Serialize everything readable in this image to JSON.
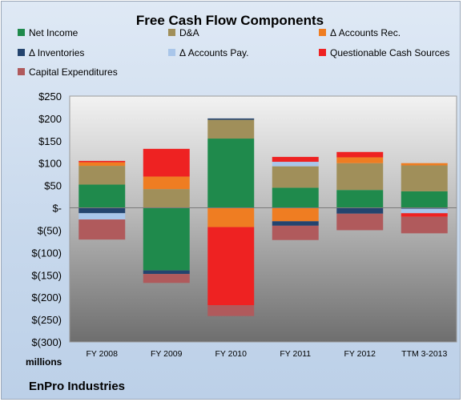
{
  "chart_data": {
    "type": "bar",
    "stacked": true,
    "title": "Free Cash Flow Components",
    "y_unit_label": "millions",
    "source_label": "EnPro Industries",
    "categories": [
      "FY 2008",
      "FY 2009",
      "FY 2010",
      "FY 2011",
      "FY 2012",
      "TTM 3-2013"
    ],
    "ylim": [
      -300,
      250
    ],
    "yticks": [
      250,
      200,
      150,
      100,
      50,
      0,
      -50,
      -100,
      -150,
      -200,
      -250,
      -300
    ],
    "ytick_labels": [
      "$250",
      "$200",
      "$150",
      "$100",
      "$50",
      "$-",
      "$(50)",
      "$(100)",
      "$(150)",
      "$(200)",
      "$(250)",
      "$(300)"
    ],
    "legend_position": "top",
    "grid": false,
    "series": [
      {
        "name": "Net Income",
        "color": "#1f8a4c",
        "values": [
          52,
          -140,
          155,
          45,
          40,
          37
        ]
      },
      {
        "name": "D&A",
        "color": "#a08f5a",
        "values": [
          42,
          42,
          42,
          48,
          60,
          58
        ]
      },
      {
        "name": "Δ Accounts Rec.",
        "color": "#ef7d22",
        "values": [
          8,
          28,
          -43,
          -30,
          13,
          5
        ]
      },
      {
        "name": "Δ Inventories",
        "color": "#24446e",
        "values": [
          -12,
          -8,
          3,
          -10,
          -13,
          -2
        ]
      },
      {
        "name": "Δ Accounts Pay.",
        "color": "#a9c6ea",
        "values": [
          -14,
          0,
          0,
          10,
          0,
          -10
        ]
      },
      {
        "name": "Questionable Cash Sources",
        "color": "#ee2222",
        "values": [
          3,
          62,
          -175,
          11,
          12,
          -8
        ]
      },
      {
        "name": "Capital Expenditures",
        "color": "#b05a5c",
        "values": [
          -45,
          -20,
          -24,
          -32,
          -37,
          -37
        ]
      }
    ]
  }
}
